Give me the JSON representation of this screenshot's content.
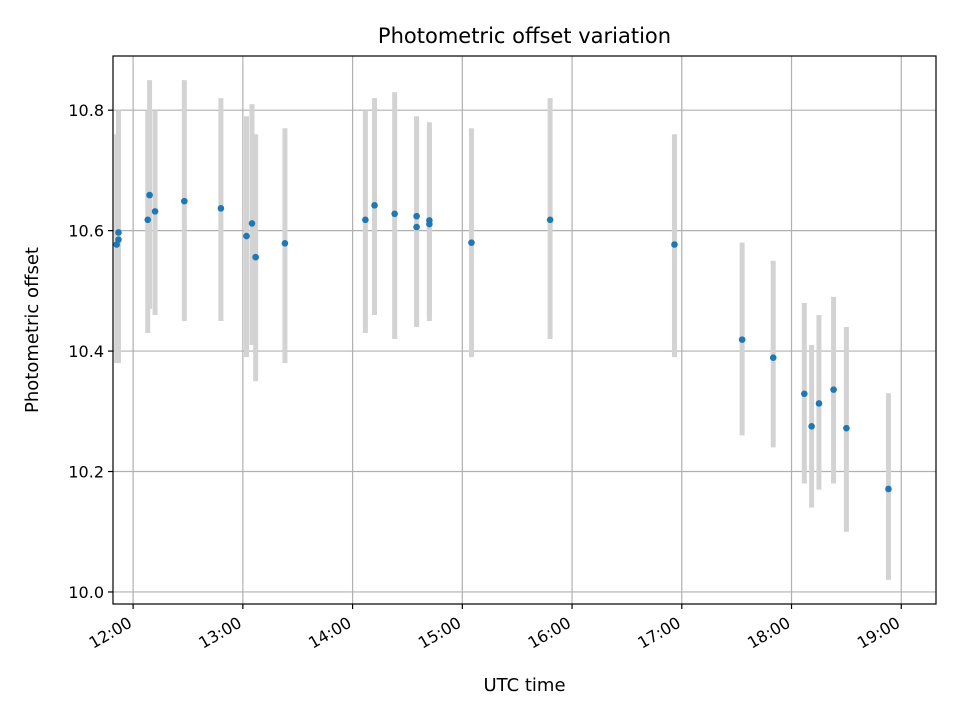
{
  "chart_data": {
    "type": "scatter",
    "title": "Photometric offset variation",
    "xlabel": "UTC time",
    "ylabel": "Photometric offset",
    "x_tick_labels": [
      "12:00",
      "13:00",
      "14:00",
      "15:00",
      "16:00",
      "17:00",
      "18:00",
      "19:00"
    ],
    "y_tick_labels": [
      "10.0",
      "10.2",
      "10.4",
      "10.6",
      "10.8"
    ],
    "y_ticks": [
      10.0,
      10.2,
      10.4,
      10.6,
      10.8
    ],
    "xlim": [
      "11:49",
      "19:19"
    ],
    "ylim": [
      9.98,
      10.89
    ],
    "grid": true,
    "series": [
      {
        "color": "#1f77b4",
        "errorbar_color": "#d3d3d3",
        "points": [
          {
            "x": "11:52",
            "y": 10.597,
            "lo": 10.39,
            "hi": 10.8
          },
          {
            "x": "11:52",
            "y": 10.585,
            "lo": 10.38,
            "hi": 10.77
          },
          {
            "x": "11:51",
            "y": 10.577,
            "lo": 10.38,
            "hi": 10.76
          },
          {
            "x": "12:09",
            "y": 10.659,
            "lo": 10.47,
            "hi": 10.85
          },
          {
            "x": "12:08",
            "y": 10.618,
            "lo": 10.43,
            "hi": 10.8
          },
          {
            "x": "12:12",
            "y": 10.632,
            "lo": 10.46,
            "hi": 10.8
          },
          {
            "x": "12:28",
            "y": 10.649,
            "lo": 10.45,
            "hi": 10.85
          },
          {
            "x": "12:48",
            "y": 10.637,
            "lo": 10.45,
            "hi": 10.82
          },
          {
            "x": "13:02",
            "y": 10.591,
            "lo": 10.39,
            "hi": 10.79
          },
          {
            "x": "13:05",
            "y": 10.612,
            "lo": 10.41,
            "hi": 10.81
          },
          {
            "x": "13:07",
            "y": 10.556,
            "lo": 10.35,
            "hi": 10.76
          },
          {
            "x": "13:23",
            "y": 10.579,
            "lo": 10.38,
            "hi": 10.77
          },
          {
            "x": "14:07",
            "y": 10.618,
            "lo": 10.43,
            "hi": 10.8
          },
          {
            "x": "14:12",
            "y": 10.642,
            "lo": 10.46,
            "hi": 10.82
          },
          {
            "x": "14:23",
            "y": 10.628,
            "lo": 10.42,
            "hi": 10.83
          },
          {
            "x": "14:35",
            "y": 10.624,
            "lo": 10.44,
            "hi": 10.79
          },
          {
            "x": "14:35",
            "y": 10.606,
            "lo": 10.44,
            "hi": 10.78
          },
          {
            "x": "14:42",
            "y": 10.617,
            "lo": 10.45,
            "hi": 10.78
          },
          {
            "x": "14:42",
            "y": 10.611,
            "lo": 10.46,
            "hi": 10.77
          },
          {
            "x": "15:05",
            "y": 10.58,
            "lo": 10.39,
            "hi": 10.77
          },
          {
            "x": "15:48",
            "y": 10.618,
            "lo": 10.42,
            "hi": 10.82
          },
          {
            "x": "16:56",
            "y": 10.577,
            "lo": 10.39,
            "hi": 10.76
          },
          {
            "x": "17:33",
            "y": 10.419,
            "lo": 10.26,
            "hi": 10.58
          },
          {
            "x": "17:50",
            "y": 10.389,
            "lo": 10.24,
            "hi": 10.55
          },
          {
            "x": "18:07",
            "y": 10.329,
            "lo": 10.18,
            "hi": 10.48
          },
          {
            "x": "18:11",
            "y": 10.275,
            "lo": 10.14,
            "hi": 10.41
          },
          {
            "x": "18:15",
            "y": 10.313,
            "lo": 10.17,
            "hi": 10.46
          },
          {
            "x": "18:23",
            "y": 10.336,
            "lo": 10.18,
            "hi": 10.49
          },
          {
            "x": "18:30",
            "y": 10.272,
            "lo": 10.1,
            "hi": 10.44
          },
          {
            "x": "18:53",
            "y": 10.171,
            "lo": 10.02,
            "hi": 10.33
          }
        ]
      }
    ]
  }
}
